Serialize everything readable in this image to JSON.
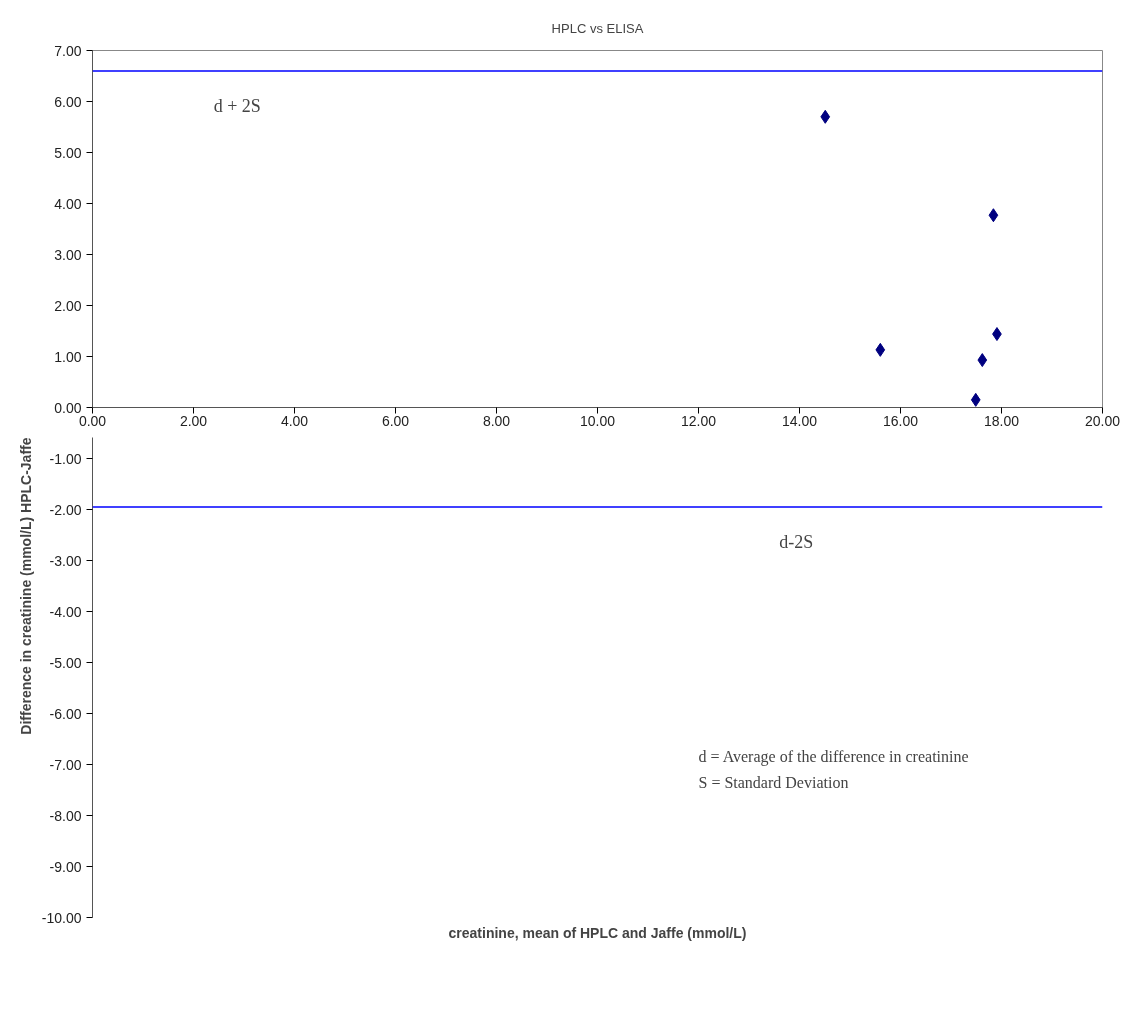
{
  "chart_data": {
    "type": "scatter",
    "title": "HPLC vs ELISA",
    "xlabel": "creatinine, mean of HPLC and Jaffe (mmol/L)",
    "ylabel": "Difference in creatinine (mmol/L) HPLC-Jaffe",
    "x": [
      14.51,
      17.84,
      15.6,
      17.91,
      17.62,
      17.49
    ],
    "series": [
      {
        "color": "#000080",
        "values": [
          5.7,
          3.77,
          1.13,
          1.44,
          0.93,
          0.15
        ]
      }
    ],
    "marker": "diamond",
    "xlim": [
      0,
      20
    ],
    "ylim": [
      -10,
      7
    ],
    "xticks": [
      {
        "value": 0,
        "label": "0.00"
      },
      {
        "value": 2,
        "label": "2.00"
      },
      {
        "value": 4,
        "label": "4.00"
      },
      {
        "value": 6,
        "label": "6.00"
      },
      {
        "value": 8,
        "label": "8.00"
      },
      {
        "value": 10,
        "label": "10.00"
      },
      {
        "value": 12,
        "label": "12.00"
      },
      {
        "value": 14,
        "label": "14.00"
      },
      {
        "value": 16,
        "label": "16.00"
      },
      {
        "value": 18,
        "label": "18.00"
      },
      {
        "value": 20,
        "label": "20.00"
      }
    ],
    "yticks": [
      {
        "value": 7,
        "label": "7.00"
      },
      {
        "value": 6,
        "label": "6.00"
      },
      {
        "value": 5,
        "label": "5.00"
      },
      {
        "value": 4,
        "label": "4.00"
      },
      {
        "value": 3,
        "label": "3.00"
      },
      {
        "value": 2,
        "label": "2.00"
      },
      {
        "value": 1,
        "label": "1.00"
      },
      {
        "value": 0,
        "label": "0.00"
      },
      {
        "value": -1,
        "label": "-1.00"
      },
      {
        "value": -2,
        "label": "-2.00"
      },
      {
        "value": -3,
        "label": "-3.00"
      },
      {
        "value": -4,
        "label": "-4.00"
      },
      {
        "value": -5,
        "label": "-5.00"
      },
      {
        "value": -6,
        "label": "-6.00"
      },
      {
        "value": -7,
        "label": "-7.00"
      },
      {
        "value": -8,
        "label": "-8.00"
      },
      {
        "value": -9,
        "label": "-9.00"
      },
      {
        "value": -10,
        "label": "-10.00"
      }
    ],
    "ref_lines": [
      {
        "axis": "y",
        "value": 6.6,
        "label": "d + 2S",
        "color": "#0000ff"
      },
      {
        "axis": "y",
        "value": -1.95,
        "label": "d-2S",
        "color": "#0000ff"
      }
    ],
    "annotations": [
      "d = Average of the difference in creatinine",
      "S = Standard Deviation"
    ],
    "grid": false
  }
}
